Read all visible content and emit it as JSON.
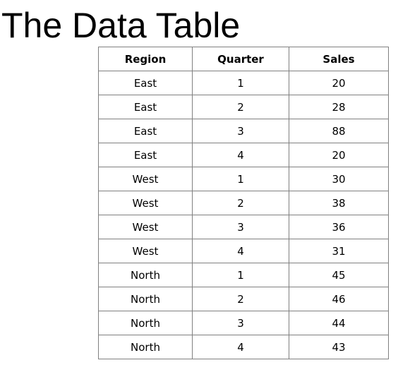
{
  "title": "The Data Table",
  "table": {
    "headers": [
      "Region",
      "Quarter",
      "Sales"
    ],
    "rows": [
      [
        "East",
        "1",
        "20"
      ],
      [
        "East",
        "2",
        "28"
      ],
      [
        "East",
        "3",
        "88"
      ],
      [
        "East",
        "4",
        "20"
      ],
      [
        "West",
        "1",
        "30"
      ],
      [
        "West",
        "2",
        "38"
      ],
      [
        "West",
        "3",
        "36"
      ],
      [
        "West",
        "4",
        "31"
      ],
      [
        "North",
        "1",
        "45"
      ],
      [
        "North",
        "2",
        "46"
      ],
      [
        "North",
        "3",
        "44"
      ],
      [
        "North",
        "4",
        "43"
      ]
    ]
  }
}
